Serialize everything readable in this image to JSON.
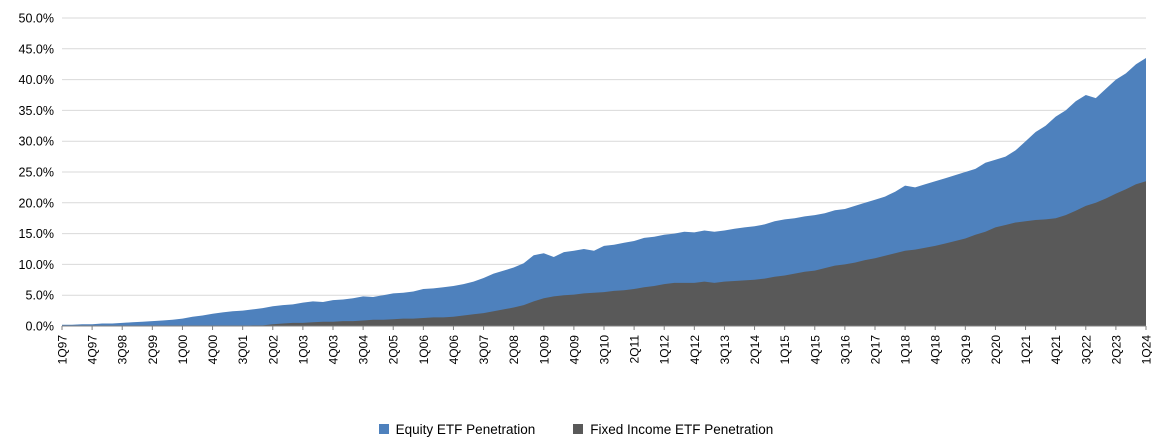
{
  "chart_data": {
    "type": "area",
    "title": "",
    "grid": "horizontal",
    "legend_position": "bottom",
    "ylim": [
      0,
      50
    ],
    "y_tick_step": 5,
    "y_tick_labels": [
      "0.0%",
      "5.0%",
      "10.0%",
      "15.0%",
      "20.0%",
      "25.0%",
      "30.0%",
      "35.0%",
      "40.0%",
      "45.0%",
      "50.0%"
    ],
    "x_tick_every": 3,
    "categories": [
      "1Q97",
      "2Q97",
      "3Q97",
      "4Q97",
      "1Q98",
      "2Q98",
      "3Q98",
      "4Q98",
      "1Q99",
      "2Q99",
      "3Q99",
      "4Q99",
      "1Q00",
      "2Q00",
      "3Q00",
      "4Q00",
      "1Q01",
      "2Q01",
      "3Q01",
      "4Q01",
      "1Q02",
      "2Q02",
      "3Q02",
      "4Q02",
      "1Q03",
      "2Q03",
      "3Q03",
      "4Q03",
      "1Q04",
      "2Q04",
      "3Q04",
      "4Q04",
      "1Q05",
      "2Q05",
      "3Q05",
      "4Q05",
      "1Q06",
      "2Q06",
      "3Q06",
      "4Q06",
      "1Q07",
      "2Q07",
      "3Q07",
      "4Q07",
      "1Q08",
      "2Q08",
      "3Q08",
      "4Q08",
      "1Q09",
      "2Q09",
      "3Q09",
      "4Q09",
      "1Q10",
      "2Q10",
      "3Q10",
      "4Q10",
      "1Q11",
      "2Q11",
      "3Q11",
      "4Q11",
      "1Q12",
      "2Q12",
      "3Q12",
      "4Q12",
      "1Q13",
      "2Q13",
      "3Q13",
      "4Q13",
      "1Q14",
      "2Q14",
      "3Q14",
      "4Q14",
      "1Q15",
      "2Q15",
      "3Q15",
      "4Q15",
      "1Q16",
      "2Q16",
      "3Q16",
      "4Q16",
      "1Q17",
      "2Q17",
      "3Q17",
      "4Q17",
      "1Q18",
      "2Q18",
      "3Q18",
      "4Q18",
      "1Q19",
      "2Q19",
      "3Q19",
      "4Q19",
      "1Q20",
      "2Q20",
      "3Q20",
      "4Q20",
      "1Q21",
      "2Q21",
      "3Q21",
      "4Q21",
      "1Q22",
      "2Q22",
      "3Q22",
      "4Q22",
      "1Q23",
      "2Q23",
      "3Q23",
      "4Q23",
      "1Q24"
    ],
    "series": [
      {
        "name": "Equity ETF Penetration",
        "color": "#4E81BD",
        "values": [
          0.2,
          0.2,
          0.3,
          0.3,
          0.4,
          0.4,
          0.5,
          0.6,
          0.7,
          0.8,
          0.9,
          1.0,
          1.2,
          1.5,
          1.7,
          2.0,
          2.2,
          2.4,
          2.5,
          2.7,
          2.9,
          3.2,
          3.4,
          3.5,
          3.8,
          4.0,
          3.9,
          4.2,
          4.3,
          4.5,
          4.8,
          4.7,
          5.0,
          5.3,
          5.4,
          5.6,
          6.0,
          6.1,
          6.3,
          6.5,
          6.8,
          7.2,
          7.8,
          8.5,
          9.0,
          9.5,
          10.2,
          11.5,
          11.8,
          11.2,
          12.0,
          12.2,
          12.5,
          12.2,
          13.0,
          13.2,
          13.5,
          13.8,
          14.3,
          14.5,
          14.8,
          15.0,
          15.3,
          15.2,
          15.5,
          15.3,
          15.5,
          15.8,
          16.0,
          16.2,
          16.5,
          17.0,
          17.3,
          17.5,
          17.8,
          18.0,
          18.3,
          18.8,
          19.0,
          19.5,
          20.0,
          20.5,
          21.0,
          21.8,
          22.8,
          22.5,
          23.0,
          23.5,
          24.0,
          24.5,
          25.0,
          25.5,
          26.5,
          27.0,
          27.5,
          28.5,
          30.0,
          31.5,
          32.5,
          34.0,
          35.0,
          36.5,
          37.5,
          37.0,
          38.5,
          40.0,
          41.0,
          42.5,
          43.5
        ]
      },
      {
        "name": "Fixed Income ETF Penetration",
        "color": "#595959",
        "values": [
          0.0,
          0.0,
          0.0,
          0.0,
          0.0,
          0.0,
          0.0,
          0.0,
          0.0,
          0.0,
          0.0,
          0.0,
          0.0,
          0.0,
          0.0,
          0.0,
          0.0,
          0.0,
          0.0,
          0.1,
          0.1,
          0.3,
          0.4,
          0.5,
          0.5,
          0.6,
          0.7,
          0.7,
          0.8,
          0.8,
          0.9,
          1.0,
          1.0,
          1.1,
          1.2,
          1.2,
          1.3,
          1.4,
          1.4,
          1.5,
          1.7,
          1.9,
          2.1,
          2.4,
          2.7,
          3.0,
          3.4,
          4.0,
          4.5,
          4.8,
          5.0,
          5.1,
          5.3,
          5.4,
          5.5,
          5.7,
          5.8,
          6.0,
          6.3,
          6.5,
          6.8,
          7.0,
          7.0,
          7.0,
          7.2,
          7.0,
          7.2,
          7.3,
          7.4,
          7.5,
          7.7,
          8.0,
          8.2,
          8.5,
          8.8,
          9.0,
          9.4,
          9.8,
          10.0,
          10.3,
          10.7,
          11.0,
          11.4,
          11.8,
          12.2,
          12.4,
          12.7,
          13.0,
          13.4,
          13.8,
          14.2,
          14.8,
          15.3,
          16.0,
          16.4,
          16.8,
          17.0,
          17.2,
          17.3,
          17.5,
          18.0,
          18.7,
          19.5,
          20.0,
          20.7,
          21.5,
          22.2,
          23.0,
          23.5
        ]
      }
    ],
    "axis_color": "#808080",
    "gridline_color": "#D9D9D9"
  }
}
